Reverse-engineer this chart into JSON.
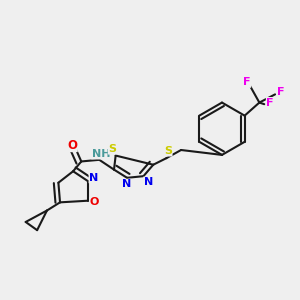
{
  "bg_color": "#efefef",
  "bond_color": "#1a1a1a",
  "atom_colors": {
    "O": "#ee0000",
    "N": "#0000ee",
    "S": "#cccc00",
    "F": "#ee00ee",
    "C": "#1a1a1a",
    "H": "#4a9a9a"
  },
  "lw": 1.5
}
